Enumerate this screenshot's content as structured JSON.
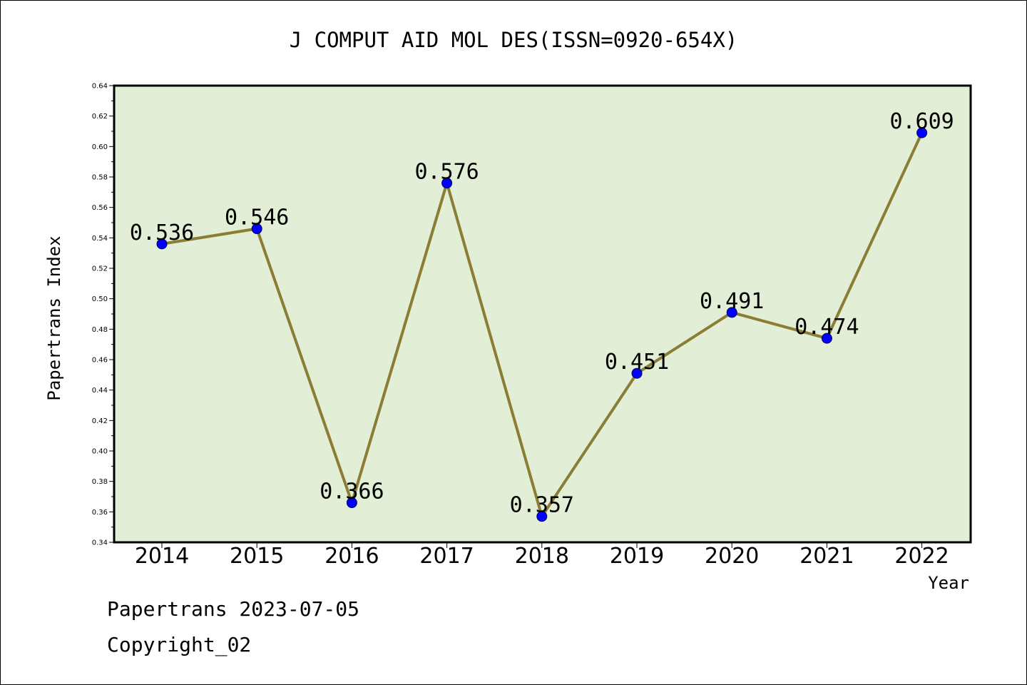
{
  "chart_data": {
    "type": "line",
    "title": "J COMPUT AID MOL DES(ISSN=0920-654X)",
    "xlabel": "Year",
    "ylabel": "Papertrans Index",
    "categories": [
      "2014",
      "2015",
      "2016",
      "2017",
      "2018",
      "2019",
      "2020",
      "2021",
      "2022"
    ],
    "series": [
      {
        "values": [
          0.536,
          0.546,
          0.366,
          0.576,
          0.357,
          0.451,
          0.491,
          0.474,
          0.609
        ]
      }
    ],
    "data_labels": [
      "0.536",
      "0.546",
      "0.366",
      "0.576",
      "0.357",
      "0.451",
      "0.491",
      "0.474",
      "0.609"
    ],
    "ylim": [
      0.34,
      0.64
    ],
    "yticks": [
      "0.34",
      "0.36",
      "0.38",
      "0.40",
      "0.42",
      "0.44",
      "0.46",
      "0.48",
      "0.50",
      "0.52",
      "0.54",
      "0.56",
      "0.58",
      "0.60",
      "0.62",
      "0.64"
    ],
    "grid": false,
    "line_color": "#8b7d35",
    "marker_color": "#0000ff",
    "plot_background": "#e2efd6"
  },
  "footer": {
    "date_line": "Papertrans 2023-07-05",
    "copyright_line": "Copyright_02"
  }
}
